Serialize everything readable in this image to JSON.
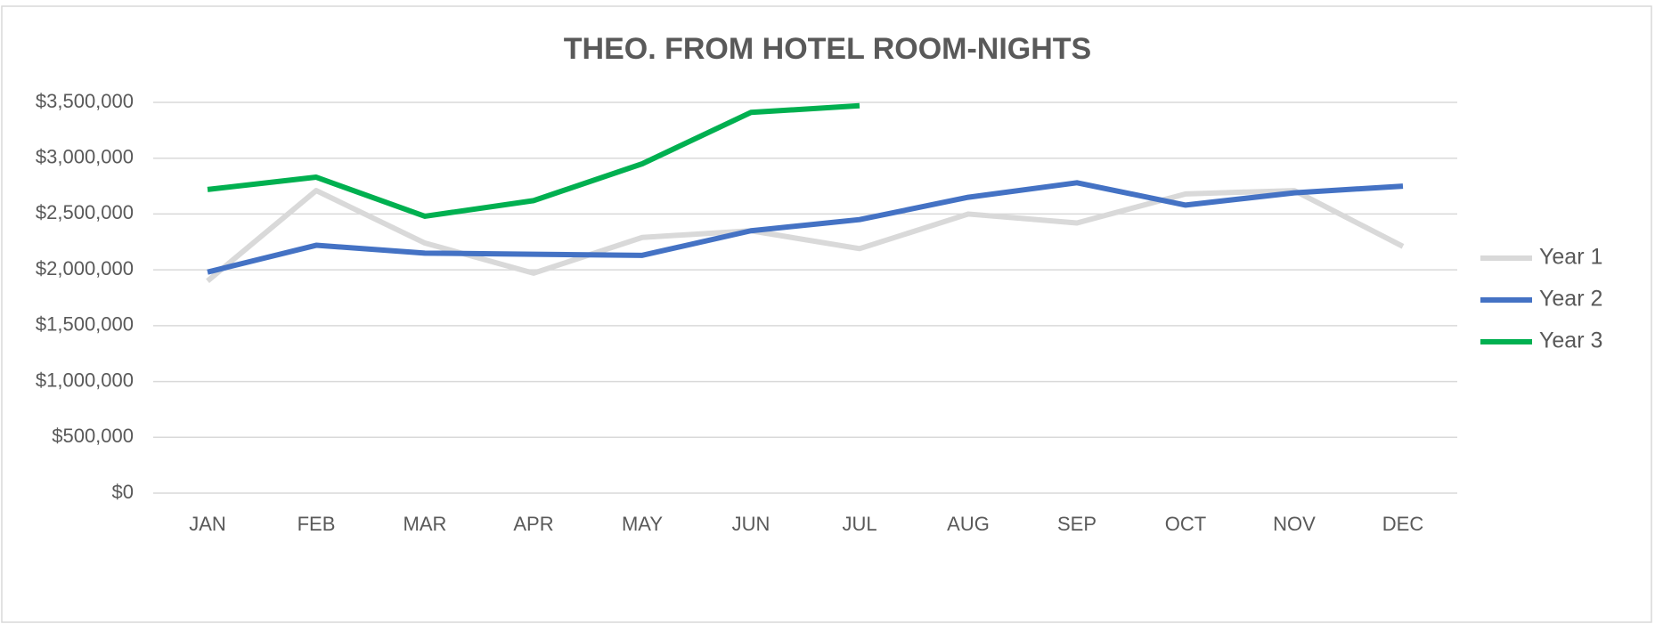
{
  "chart_data": {
    "type": "line",
    "title": "THEO. FROM HOTEL ROOM-NIGHTS",
    "categories": [
      "JAN",
      "FEB",
      "MAR",
      "APR",
      "MAY",
      "JUN",
      "JUL",
      "AUG",
      "SEP",
      "OCT",
      "NOV",
      "DEC"
    ],
    "series": [
      {
        "name": "Year 1",
        "color": "#d9d9d9",
        "values": [
          1900000,
          2710000,
          2240000,
          1970000,
          2290000,
          2350000,
          2190000,
          2500000,
          2420000,
          2680000,
          2710000,
          2210000
        ]
      },
      {
        "name": "Year 2",
        "color": "#4472c4",
        "values": [
          1980000,
          2220000,
          2150000,
          2140000,
          2130000,
          2350000,
          2450000,
          2650000,
          2780000,
          2580000,
          2690000,
          2750000
        ]
      },
      {
        "name": "Year 3",
        "color": "#00b050",
        "values": [
          2720000,
          2830000,
          2480000,
          2620000,
          2950000,
          3410000,
          3470000,
          null,
          null,
          null,
          null,
          null
        ]
      }
    ],
    "ylim": [
      0,
      3500000
    ],
    "yticks": [
      {
        "value": 0,
        "label": "$0"
      },
      {
        "value": 500000,
        "label": "$500,000"
      },
      {
        "value": 1000000,
        "label": "$1,000,000"
      },
      {
        "value": 1500000,
        "label": "$1,500,000"
      },
      {
        "value": 2000000,
        "label": "$2,000,000"
      },
      {
        "value": 2500000,
        "label": "$2,500,000"
      },
      {
        "value": 3000000,
        "label": "$3,000,000"
      },
      {
        "value": 3500000,
        "label": "$3,500,000"
      }
    ],
    "grid": true,
    "legend": "right"
  }
}
